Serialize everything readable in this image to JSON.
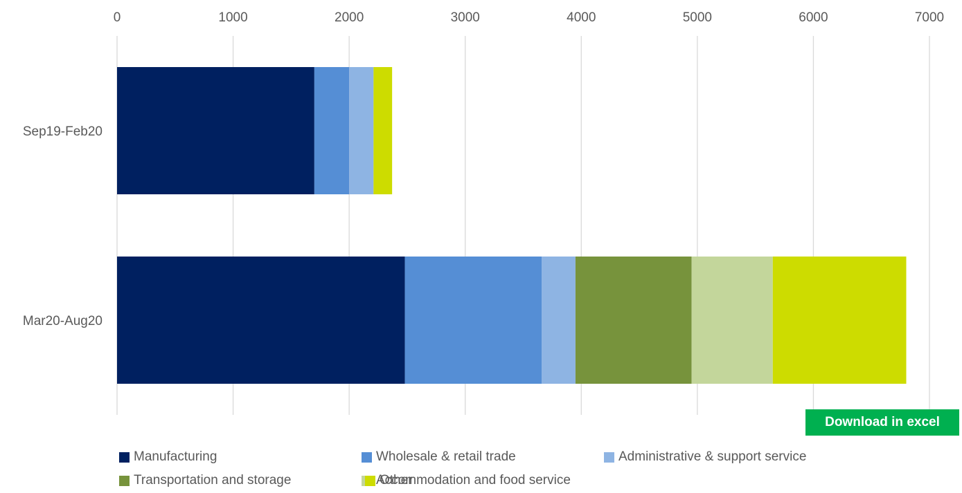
{
  "chart_data": {
    "type": "bar",
    "orientation": "horizontal",
    "stacked": true,
    "categories": [
      "Sep19-Feb20",
      "Mar20-Aug20"
    ],
    "series": [
      {
        "name": "Manufacturing",
        "color": "#002060",
        "values": [
          1700,
          2480
        ]
      },
      {
        "name": "Wholesale & retail trade",
        "color": "#558ed5",
        "values": [
          300,
          1180
        ]
      },
      {
        "name": "Administrative & support service",
        "color": "#8eb4e3",
        "values": [
          210,
          290
        ]
      },
      {
        "name": "Transportation and storage",
        "color": "#77933c",
        "values": [
          0,
          1000
        ]
      },
      {
        "name": "Accommodation and food service",
        "color": "#c3d69b",
        "values": [
          0,
          700
        ]
      },
      {
        "name": "Other",
        "color": "#cddc00",
        "values": [
          160,
          1150
        ]
      }
    ],
    "xlim": [
      0,
      7000
    ],
    "x_ticks": [
      "0",
      "1000",
      "2000",
      "3000",
      "4000",
      "5000",
      "6000",
      "7000"
    ],
    "x_axis_position": "top",
    "grid": true,
    "legend_position": "bottom"
  },
  "download_button": {
    "label": "Download in excel",
    "color": "#00b050"
  }
}
